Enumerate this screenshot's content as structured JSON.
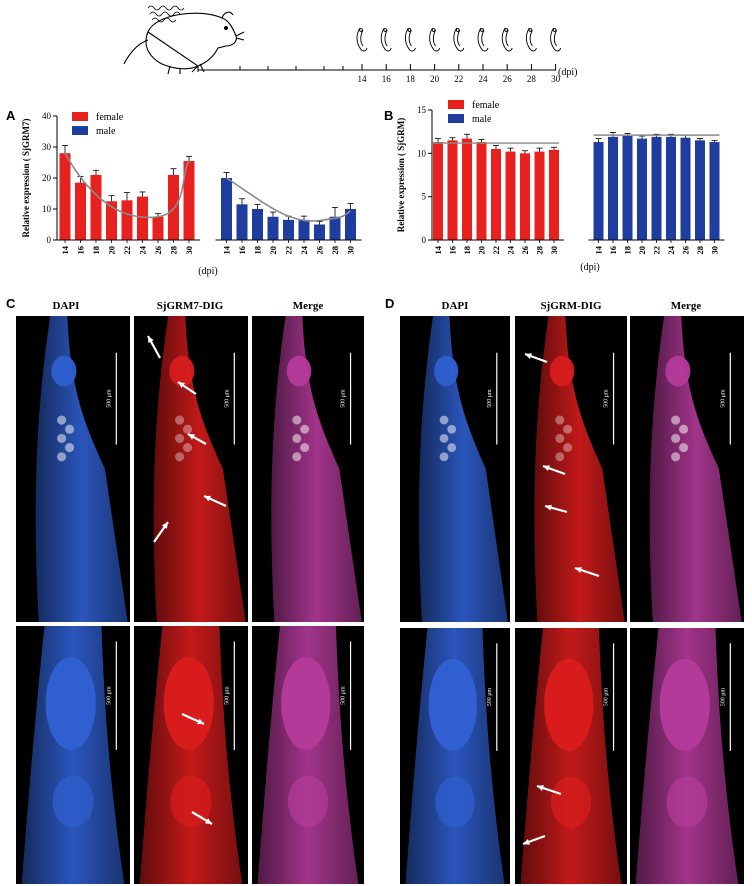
{
  "timeline": {
    "labels": [
      "14",
      "16",
      "18",
      "20",
      "22",
      "24",
      "26",
      "28",
      "30"
    ],
    "unit": "(dpi)"
  },
  "panels": {
    "a": "A",
    "b": "B",
    "c": "C",
    "d": "D"
  },
  "chart_data": [
    {
      "type": "bar",
      "panel": "A",
      "categories": [
        "14",
        "16",
        "18",
        "20",
        "22",
        "24",
        "26",
        "28",
        "30"
      ],
      "series": [
        {
          "name": "female",
          "color": "#e8201e",
          "values": [
            28.0,
            18.5,
            21.0,
            12.5,
            12.8,
            14.0,
            7.5,
            21.0,
            25.5
          ],
          "errors": [
            2.5,
            2.0,
            1.5,
            1.8,
            2.5,
            1.5,
            1.0,
            2.0,
            1.5
          ]
        },
        {
          "name": "male",
          "color": "#1f3d9e",
          "values": [
            20.0,
            11.5,
            10.0,
            7.5,
            6.5,
            6.5,
            5.0,
            7.5,
            10.0
          ],
          "errors": [
            1.8,
            1.8,
            1.5,
            1.5,
            1.2,
            1.2,
            1.0,
            3.0,
            1.8
          ]
        }
      ],
      "ylabel": "Relative expression ( SjGRM7)",
      "xlabel": "(dpi)",
      "ylim": [
        0,
        40
      ],
      "yticks": [
        "0",
        "10",
        "20",
        "30",
        "40"
      ],
      "trend": "curve"
    },
    {
      "type": "bar",
      "panel": "B",
      "categories": [
        "14",
        "16",
        "18",
        "20",
        "22",
        "24",
        "26",
        "28",
        "30"
      ],
      "series": [
        {
          "name": "female",
          "color": "#e8201e",
          "values": [
            11.3,
            11.5,
            11.7,
            11.3,
            10.5,
            10.2,
            10.0,
            10.2,
            10.4
          ],
          "errors": [
            0.4,
            0.3,
            0.5,
            0.3,
            0.4,
            0.4,
            0.3,
            0.4,
            0.3
          ]
        },
        {
          "name": "male",
          "color": "#1f3d9e",
          "values": [
            11.3,
            11.9,
            12.0,
            11.7,
            11.9,
            11.9,
            11.8,
            11.5,
            11.3
          ],
          "errors": [
            0.4,
            0.5,
            0.3,
            0.3,
            0.3,
            0.3,
            0.3,
            0.2,
            0.2
          ]
        }
      ],
      "ylabel": "Relative expression ( SjGRM)",
      "xlabel": "(dpi)",
      "ylim": [
        0,
        15
      ],
      "yticks": [
        "0",
        "5",
        "10",
        "15"
      ],
      "trend": "flat"
    }
  ],
  "micrographs": {
    "c_titles": [
      "DAPI",
      "SjGRM7-DIG",
      "Merge"
    ],
    "d_titles": [
      "DAPI",
      "SjGRM-DIG",
      "Merge"
    ],
    "scale": "500 μm"
  },
  "colors": {
    "female": "#e8201e",
    "male": "#1f3d9e",
    "trend": "#8a8a8a",
    "dapi": "#2f5fd0",
    "dig": "#d81c1c",
    "merge": "#b43a9a"
  }
}
